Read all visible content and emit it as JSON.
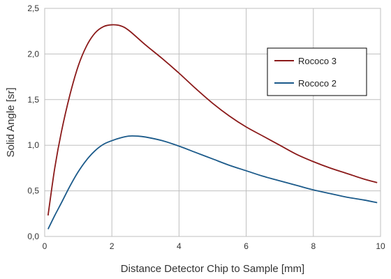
{
  "chart_data": {
    "type": "line",
    "title": "",
    "xlabel": "Distance Detector Chip to Sample [mm]",
    "ylabel": "Solid Angle [sr]",
    "xlim": [
      0,
      10
    ],
    "ylim": [
      0,
      2.5
    ],
    "xticks": [
      0,
      2,
      4,
      6,
      8,
      10
    ],
    "xtick_labels": [
      "0",
      "2",
      "4",
      "6",
      "8",
      "10"
    ],
    "yticks": [
      0,
      0.5,
      1.0,
      1.5,
      2.0,
      2.5
    ],
    "ytick_labels": [
      "0,0",
      "0,5",
      "1,0",
      "1,5",
      "2,0",
      "2,5"
    ],
    "grid": true,
    "legend_position": "right",
    "series": [
      {
        "name": "Rococo 3",
        "color": "#8b1a1a",
        "x": [
          0.1,
          0.3,
          0.5,
          0.75,
          1.0,
          1.25,
          1.5,
          1.75,
          2.0,
          2.25,
          2.5,
          3.0,
          3.5,
          4.0,
          4.5,
          5.0,
          5.5,
          6.0,
          6.5,
          7.0,
          7.5,
          8.0,
          8.5,
          9.0,
          9.5,
          9.9
        ],
        "values": [
          0.23,
          0.75,
          1.15,
          1.55,
          1.87,
          2.09,
          2.23,
          2.3,
          2.32,
          2.31,
          2.26,
          2.1,
          1.95,
          1.79,
          1.62,
          1.46,
          1.32,
          1.2,
          1.1,
          1.0,
          0.9,
          0.82,
          0.75,
          0.69,
          0.63,
          0.59
        ]
      },
      {
        "name": "Rococo 2",
        "color": "#1b5a8a",
        "x": [
          0.1,
          0.3,
          0.5,
          0.75,
          1.0,
          1.25,
          1.5,
          1.75,
          2.0,
          2.25,
          2.5,
          2.75,
          3.0,
          3.5,
          4.0,
          4.5,
          5.0,
          5.5,
          6.0,
          6.5,
          7.0,
          7.5,
          8.0,
          8.5,
          9.0,
          9.5,
          9.9
        ],
        "values": [
          0.08,
          0.23,
          0.37,
          0.55,
          0.71,
          0.84,
          0.94,
          1.01,
          1.05,
          1.08,
          1.1,
          1.1,
          1.09,
          1.05,
          0.99,
          0.92,
          0.85,
          0.78,
          0.72,
          0.66,
          0.61,
          0.56,
          0.51,
          0.47,
          0.43,
          0.4,
          0.37
        ]
      }
    ]
  }
}
